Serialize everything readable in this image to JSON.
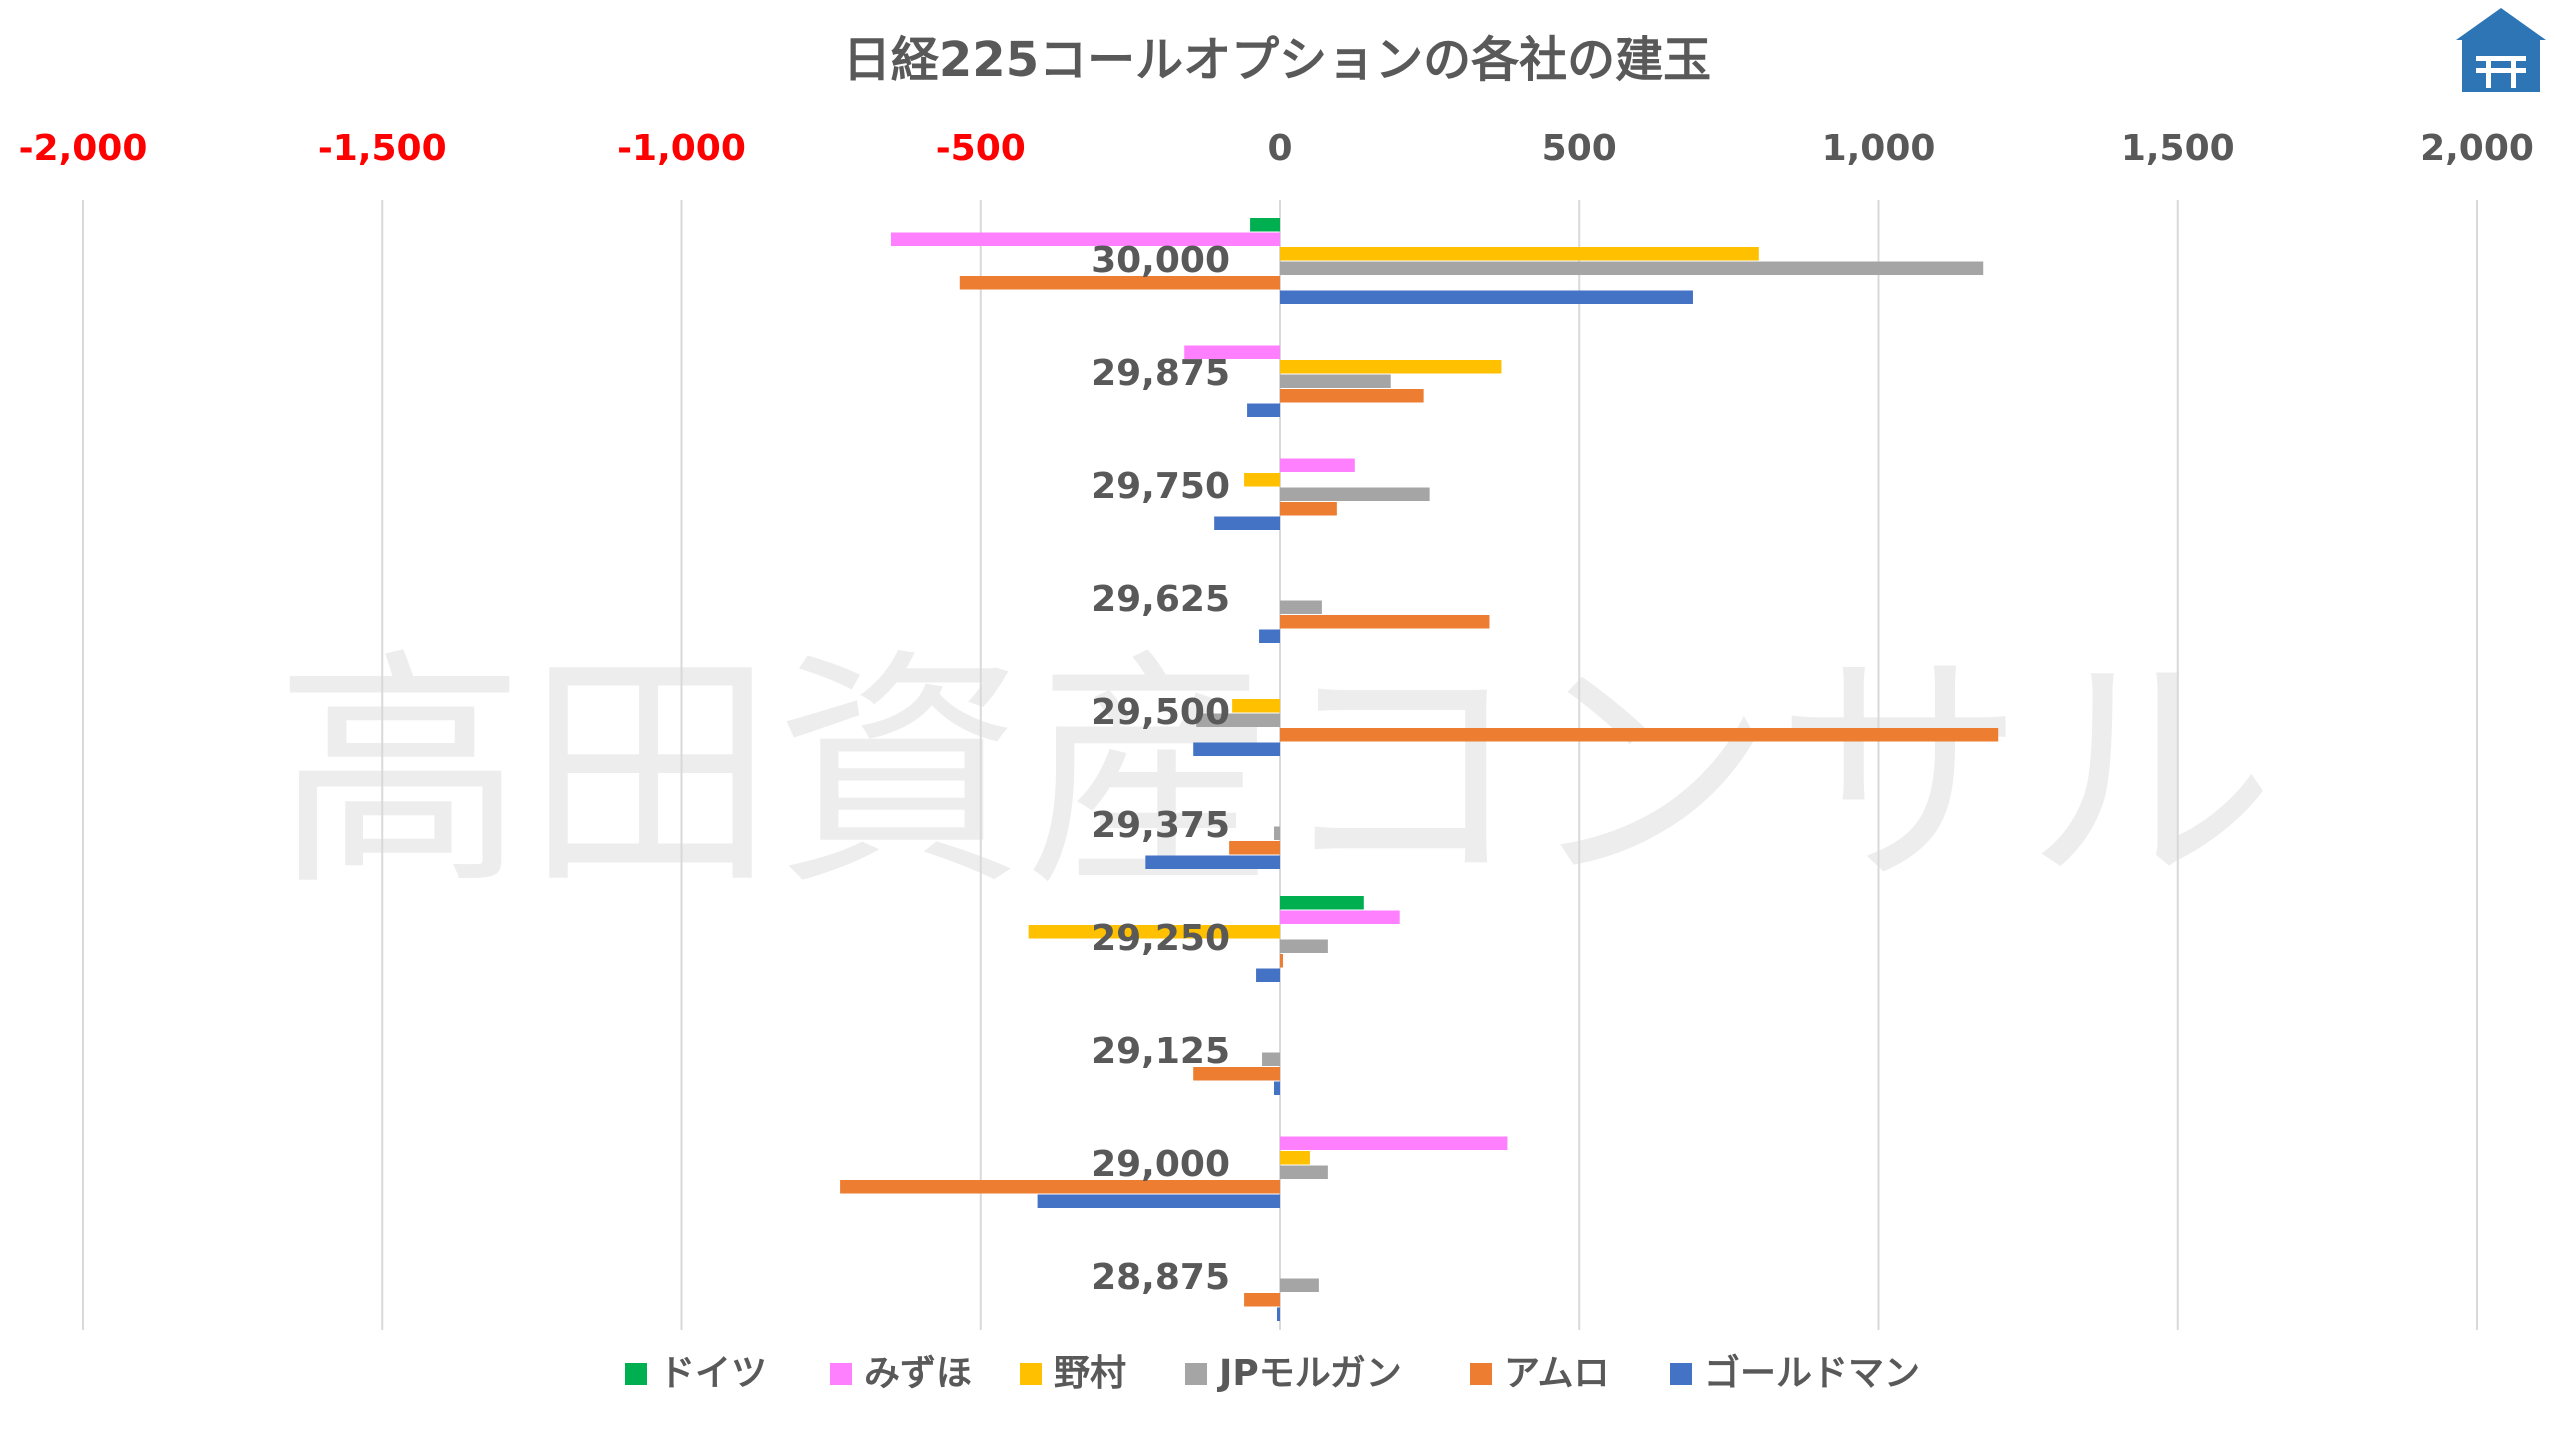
{
  "chart_data": {
    "type": "bar",
    "orientation": "horizontal",
    "title": "日経225コールオプションの各社の建玉",
    "watermark": "高田資産コンサル",
    "xlim": [
      -2000,
      2000
    ],
    "x_ticks": [
      -2000,
      -1500,
      -1000,
      -500,
      0,
      500,
      1000,
      1500,
      2000
    ],
    "x_tick_labels": [
      "-2,000",
      "-1,500",
      "-1,000",
      "-500",
      "0",
      "500",
      "1,000",
      "1,500",
      "2,000"
    ],
    "negative_tick_color": "#ff0000",
    "grid": true,
    "legend_position": "bottom",
    "categories": [
      "30,000",
      "29,875",
      "29,750",
      "29,625",
      "29,500",
      "29,375",
      "29,250",
      "29,125",
      "29,000",
      "28,875"
    ],
    "series": [
      {
        "name": "ドイツ",
        "color": "#00b050",
        "values": [
          -50,
          0,
          0,
          0,
          0,
          0,
          140,
          0,
          0,
          0
        ]
      },
      {
        "name": "みずほ",
        "color": "#ff80ff",
        "values": [
          -650,
          -160,
          125,
          0,
          0,
          0,
          200,
          0,
          380,
          0
        ]
      },
      {
        "name": "野村",
        "color": "#ffc000",
        "values": [
          800,
          370,
          -60,
          0,
          -80,
          0,
          -420,
          0,
          50,
          0
        ]
      },
      {
        "name": "JPモルガン",
        "color": "#a5a5a5",
        "values": [
          1175,
          185,
          250,
          70,
          -140,
          -10,
          80,
          -30,
          80,
          65
        ]
      },
      {
        "name": "アムロ",
        "color": "#ed7d31",
        "values": [
          -535,
          240,
          95,
          350,
          1200,
          -85,
          5,
          -145,
          -735,
          -60
        ]
      },
      {
        "name": "ゴールドマン",
        "color": "#4472c4",
        "values": [
          690,
          -55,
          -110,
          -35,
          -145,
          -225,
          -40,
          -10,
          -405,
          -5
        ]
      }
    ]
  },
  "logo": {
    "name": "house-logo",
    "color": "#2e75b6"
  }
}
